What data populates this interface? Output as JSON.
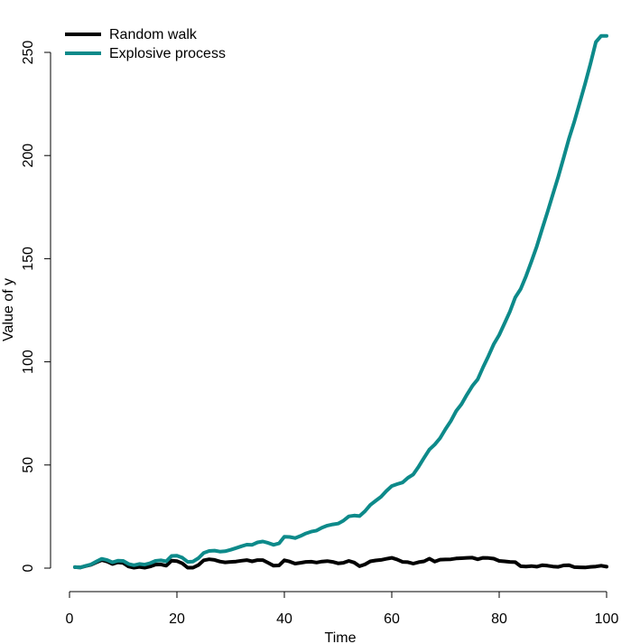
{
  "chart_data": {
    "type": "line",
    "title": "",
    "xlabel": "Time",
    "ylabel": "Value of y",
    "xlim": [
      1,
      100
    ],
    "ylim": [
      0,
      258
    ],
    "x_ticks": [
      0,
      20,
      40,
      60,
      80,
      100
    ],
    "y_ticks": [
      0,
      50,
      100,
      150,
      200,
      250
    ],
    "x_tick_labels": [
      "0",
      "20",
      "40",
      "60",
      "80",
      "100"
    ],
    "y_tick_labels": [
      "0",
      "50",
      "100",
      "150",
      "200",
      "250"
    ],
    "grid": false,
    "legend_position": "top-left",
    "x": [
      1,
      2,
      3,
      4,
      5,
      6,
      7,
      8,
      9,
      10,
      11,
      12,
      13,
      14,
      15,
      16,
      17,
      18,
      19,
      20,
      21,
      22,
      23,
      24,
      25,
      26,
      27,
      28,
      29,
      30,
      31,
      32,
      33,
      34,
      35,
      36,
      37,
      38,
      39,
      40,
      41,
      42,
      43,
      44,
      45,
      46,
      47,
      48,
      49,
      50,
      51,
      52,
      53,
      54,
      55,
      56,
      57,
      58,
      59,
      60,
      61,
      62,
      63,
      64,
      65,
      66,
      67,
      68,
      69,
      70,
      71,
      72,
      73,
      74,
      75,
      76,
      77,
      78,
      79,
      80,
      81,
      82,
      83,
      84,
      85,
      86,
      87,
      88,
      89,
      90,
      91,
      92,
      93,
      94,
      95,
      96,
      97,
      98,
      99,
      100
    ],
    "series": [
      {
        "name": "Random walk",
        "color": "#000000",
        "values": [
          0.5,
          0.3,
          1.0,
          1.6,
          2.8,
          3.9,
          3.2,
          2.0,
          2.8,
          2.5,
          0.8,
          0.2,
          0.6,
          0.2,
          0.8,
          1.7,
          1.8,
          1.2,
          3.6,
          3.4,
          2.3,
          0.2,
          0.2,
          1.5,
          3.8,
          4.3,
          4.0,
          3.2,
          2.8,
          3.0,
          3.2,
          3.6,
          3.9,
          3.3,
          3.9,
          3.9,
          2.6,
          1.2,
          1.3,
          3.8,
          3.2,
          2.2,
          2.6,
          3.0,
          3.1,
          2.7,
          3.2,
          3.4,
          3.0,
          2.3,
          2.6,
          3.5,
          2.7,
          0.9,
          1.8,
          3.3,
          3.7,
          4.0,
          4.5,
          5.0,
          4.2,
          3.0,
          2.9,
          2.2,
          2.9,
          3.3,
          4.6,
          3.2,
          4.1,
          4.2,
          4.3,
          4.7,
          4.8,
          5.0,
          5.1,
          4.3,
          5.0,
          4.9,
          4.6,
          3.5,
          3.3,
          3.0,
          2.9,
          0.9,
          0.8,
          1.0,
          0.7,
          1.4,
          1.2,
          0.8,
          0.6,
          1.3,
          1.4,
          0.5,
          0.4,
          0.3,
          0.6,
          0.8,
          1.2,
          0.7
        ]
      },
      {
        "name": "Explosive process",
        "color": "#0d8a8a",
        "values": [
          0.5,
          0.3,
          1.1,
          1.8,
          3.2,
          4.5,
          3.9,
          2.8,
          3.6,
          3.5,
          2.0,
          1.4,
          2.0,
          1.7,
          2.4,
          3.5,
          3.8,
          3.3,
          5.9,
          6.0,
          5.1,
          3.0,
          3.2,
          4.8,
          7.4,
          8.3,
          8.5,
          8.0,
          8.2,
          8.9,
          9.7,
          10.6,
          11.4,
          11.3,
          12.5,
          12.9,
          12.2,
          11.3,
          12.0,
          15.2,
          15.1,
          14.6,
          15.6,
          16.8,
          17.7,
          18.2,
          19.6,
          20.6,
          21.2,
          21.6,
          23.0,
          25.1,
          25.5,
          25.2,
          27.6,
          30.6,
          32.6,
          34.6,
          37.4,
          39.8,
          40.7,
          41.5,
          43.8,
          45.4,
          49.2,
          53.4,
          57.5,
          59.9,
          63.0,
          67.4,
          71.3,
          76.2,
          79.5,
          84.1,
          88.3,
          91.5,
          97.4,
          102.8,
          108.6,
          113.0,
          118.7,
          124.4,
          131.2,
          135.3,
          141.6,
          148.6,
          155.9,
          164.4,
          172.6,
          181.2,
          189.8,
          198.9,
          208.3,
          216.5,
          225.7,
          234.8,
          244.5,
          255.0,
          265.8,
          258.6
        ]
      }
    ]
  }
}
